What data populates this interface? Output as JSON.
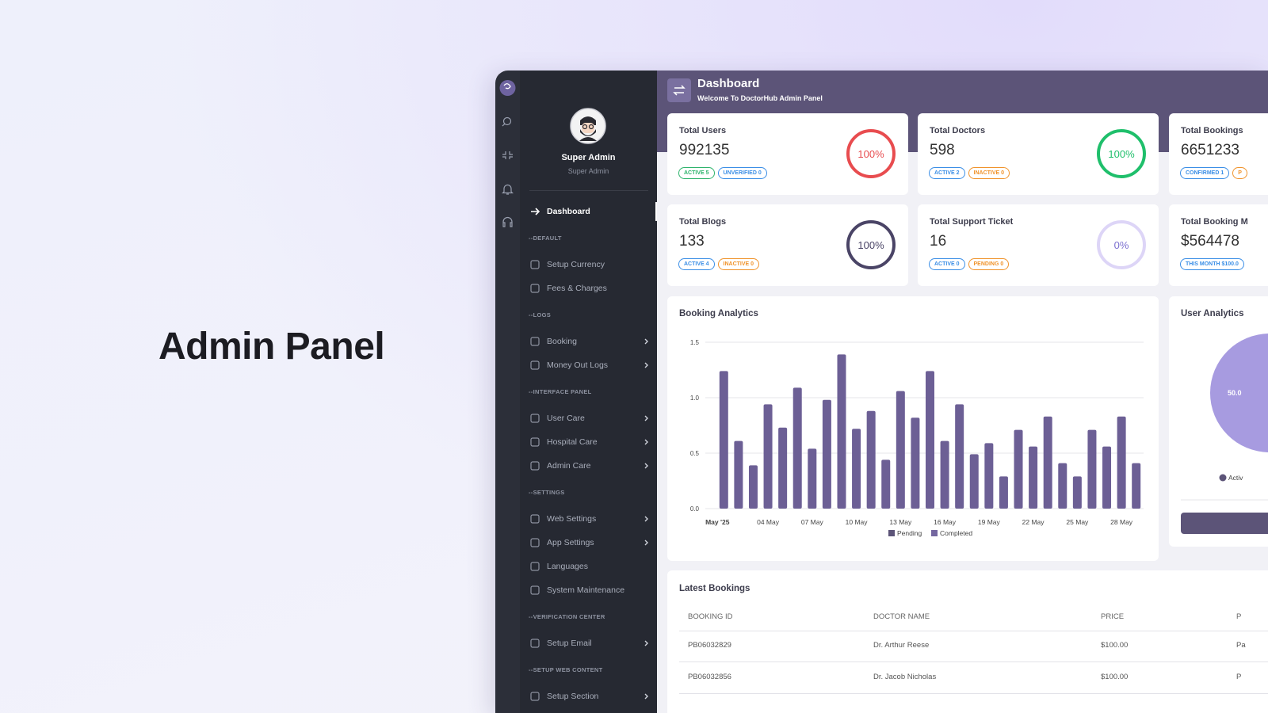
{
  "hero": {
    "title": "Admin Panel"
  },
  "header": {
    "title": "Dashboard",
    "subtitle": "Welcome To DoctorHub Admin Panel"
  },
  "profile": {
    "name": "Super Admin",
    "role": "Super Admin"
  },
  "nav": {
    "active": "Dashboard",
    "sections": [
      {
        "title": "--DEFAULT",
        "items": [
          {
            "label": "Setup Currency",
            "has_submenu": false
          },
          {
            "label": "Fees & Charges",
            "has_submenu": false
          }
        ]
      },
      {
        "title": "--LOGS",
        "items": [
          {
            "label": "Booking",
            "has_submenu": true
          },
          {
            "label": "Money Out Logs",
            "has_submenu": true
          }
        ]
      },
      {
        "title": "--INTERFACE PANEL",
        "items": [
          {
            "label": "User Care",
            "has_submenu": true
          },
          {
            "label": "Hospital Care",
            "has_submenu": true
          },
          {
            "label": "Admin Care",
            "has_submenu": true
          }
        ]
      },
      {
        "title": "--SETTINGS",
        "items": [
          {
            "label": "Web Settings",
            "has_submenu": true
          },
          {
            "label": "App Settings",
            "has_submenu": true
          },
          {
            "label": "Languages",
            "has_submenu": false
          },
          {
            "label": "System Maintenance",
            "has_submenu": false
          }
        ]
      },
      {
        "title": "--VERIFICATION CENTER",
        "items": [
          {
            "label": "Setup Email",
            "has_submenu": true
          }
        ]
      },
      {
        "title": "--SETUP WEB CONTENT",
        "items": [
          {
            "label": "Setup Section",
            "has_submenu": true
          }
        ]
      }
    ]
  },
  "stat_cards": [
    {
      "title": "Total Users",
      "value": "992135",
      "percent": "100%",
      "ring_color": "#e84c4f",
      "text_color": "#e84c4f",
      "badges": [
        {
          "text": "ACTIVE 5",
          "color": "#2db36b"
        },
        {
          "text": "UNVERIFIED 0",
          "color": "#3a8ee6"
        }
      ]
    },
    {
      "title": "Total Doctors",
      "value": "598",
      "percent": "100%",
      "ring_color": "#1fbf6b",
      "text_color": "#1fbf6b",
      "badges": [
        {
          "text": "ACTIVE 2",
          "color": "#3a8ee6"
        },
        {
          "text": "INACTIVE 0",
          "color": "#f0932b"
        }
      ]
    },
    {
      "title": "Total Bookings",
      "value": "6651233",
      "percent": null,
      "ring_color": null,
      "text_color": null,
      "badges": [
        {
          "text": "CONFIRMED 1",
          "color": "#3a8ee6"
        },
        {
          "text": "P",
          "color": "#f0932b"
        }
      ]
    },
    {
      "title": "Total Blogs",
      "value": "133",
      "percent": "100%",
      "ring_color": "#4a4466",
      "text_color": "#4a4466",
      "badges": [
        {
          "text": "ACTIVE 4",
          "color": "#3a8ee6"
        },
        {
          "text": "INACTIVE 0",
          "color": "#f0932b"
        }
      ]
    },
    {
      "title": "Total Support Ticket",
      "value": "16",
      "percent": "0%",
      "ring_color": "#ddd5f7",
      "text_color": "#7b6fd0",
      "badges": [
        {
          "text": "ACTIVE 0",
          "color": "#3a8ee6"
        },
        {
          "text": "PENDING 0",
          "color": "#f0932b"
        }
      ]
    },
    {
      "title": "Total Booking M",
      "value": "$564478",
      "percent": null,
      "ring_color": null,
      "text_color": null,
      "badges": [
        {
          "text": "THIS MONTH $100.0",
          "color": "#3a8ee6"
        }
      ]
    }
  ],
  "booking_analytics": {
    "type": "bar",
    "title": "Booking Analytics",
    "categories": [
      "May '25",
      null,
      null,
      "04 May",
      null,
      null,
      "07 May",
      null,
      null,
      "10 May",
      null,
      null,
      "13 May",
      null,
      null,
      "16 May",
      null,
      null,
      "19 May",
      null,
      null,
      "22 May",
      null,
      null,
      "25 May",
      null,
      null,
      "28 May",
      null
    ],
    "values": [
      1.24,
      0.61,
      0.39,
      0.94,
      0.73,
      1.09,
      0.54,
      0.98,
      1.39,
      0.72,
      0.88,
      0.44,
      1.06,
      0.82,
      1.24,
      0.61,
      0.94,
      0.49,
      0.59,
      0.29,
      0.71,
      0.56,
      0.83,
      0.41,
      0.29,
      0.71,
      0.56,
      0.83,
      0.41
    ],
    "color": "#6c5f95",
    "ylim": [
      0,
      1.5
    ],
    "yticks": [
      {
        "value": 0,
        "label": "0.0"
      },
      {
        "value": 0.5,
        "label": "0.5"
      },
      {
        "value": 1,
        "label": "1.0"
      },
      {
        "value": 1.5,
        "label": "1.5"
      }
    ],
    "grid": true,
    "legend": [
      {
        "name": "Pending",
        "color": "#5c5478"
      },
      {
        "name": "Completed",
        "color": "#7467a0"
      }
    ]
  },
  "user_analytics": {
    "title": "User Analytics",
    "slice_label": "50.0",
    "legend_label": "Activ"
  },
  "latest_bookings": {
    "title": "Latest Bookings",
    "columns": [
      "BOOKING ID",
      "DOCTOR NAME",
      "PRICE",
      "P"
    ],
    "rows": [
      [
        "PB06032829",
        "Dr. Arthur Reese",
        "$100.00",
        "Pa"
      ],
      [
        "PB06032856",
        "Dr. Jacob Nicholas",
        "$100.00",
        "P"
      ]
    ]
  }
}
